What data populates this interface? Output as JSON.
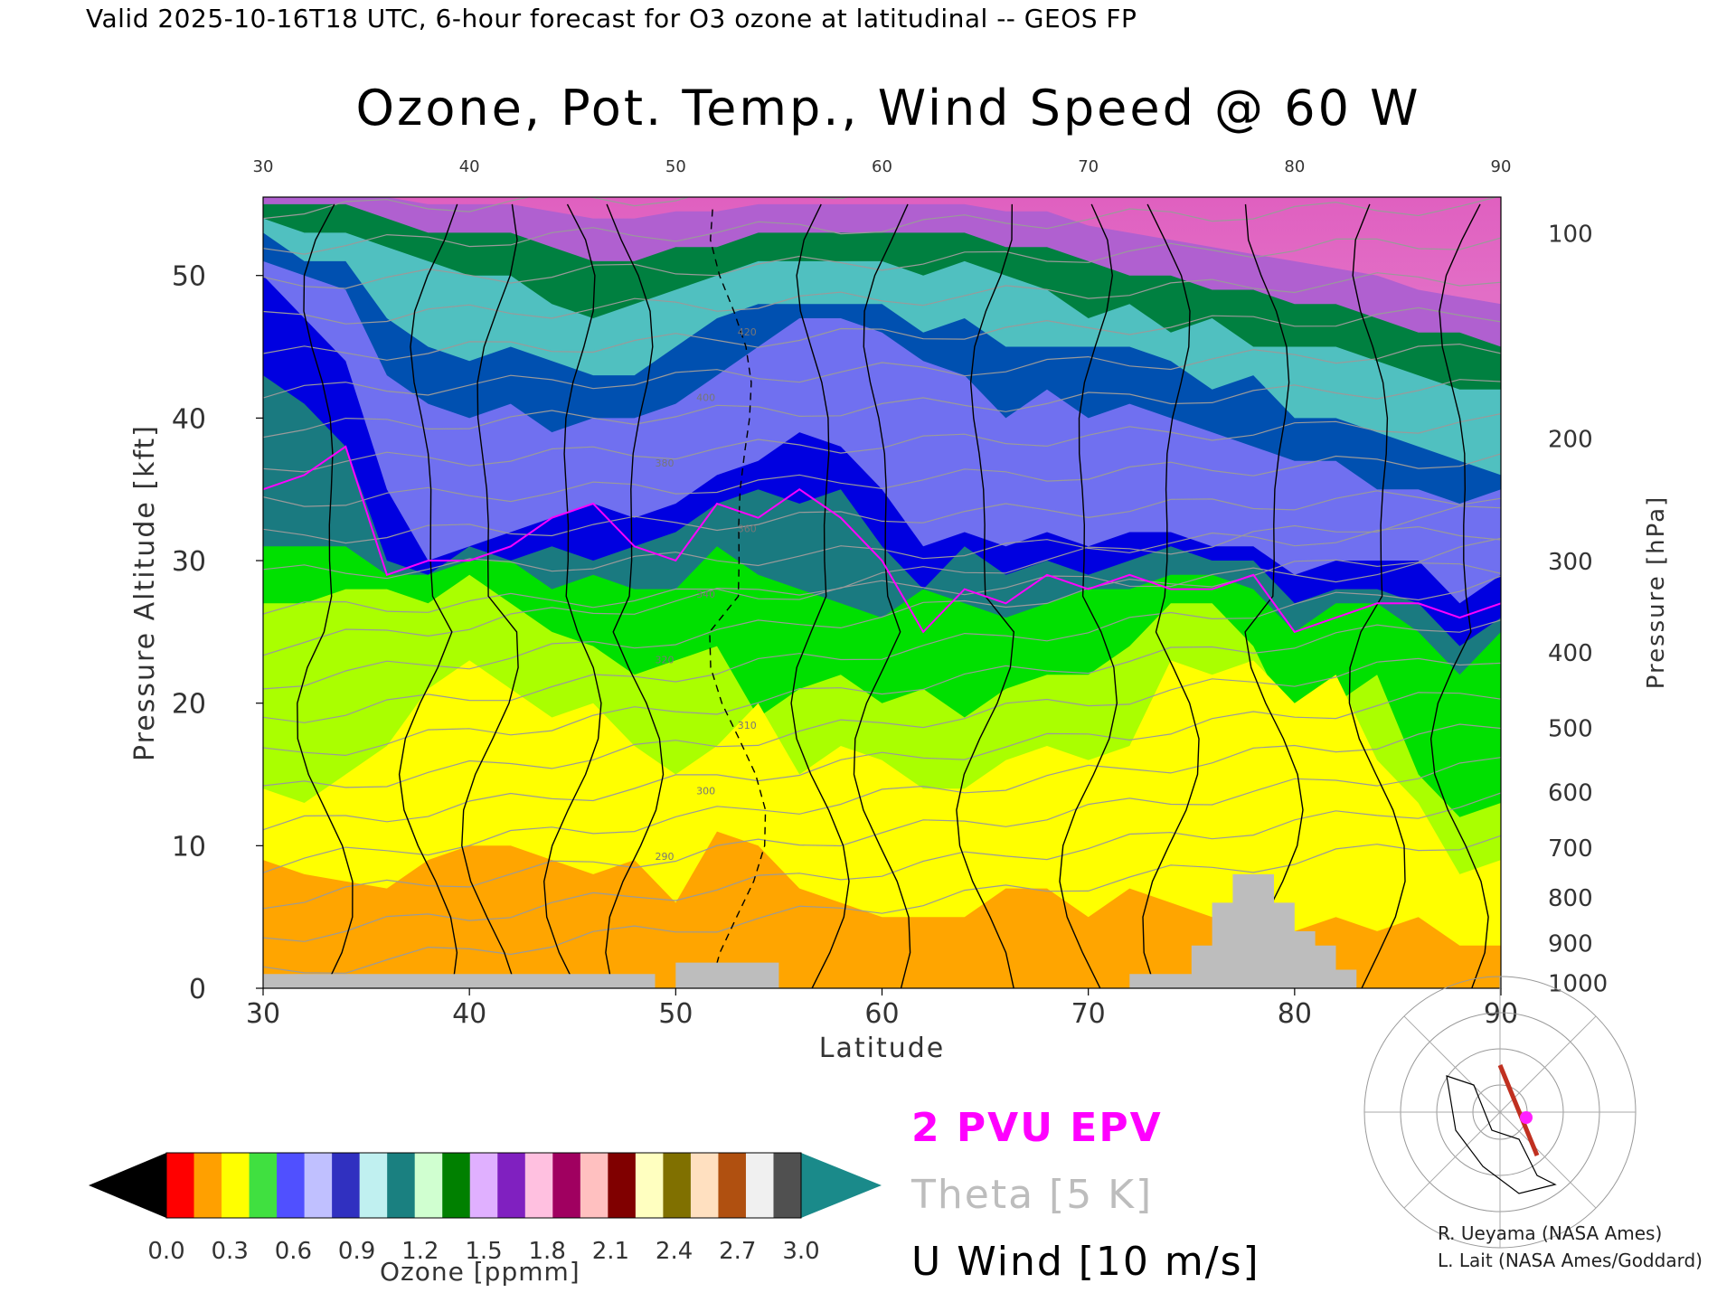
{
  "header": "Valid 2025-10-16T18 UTC, 6-hour forecast for O3 ozone at latitudinal -- GEOS FP",
  "chart_data": {
    "type": "heatmap",
    "title": "Ozone, Pot. Temp., Wind Speed @ 60 W",
    "xlabel": "Latitude",
    "ylabel": "Pressure Altitude [kft]",
    "y2label": "Pressure [hPa]",
    "xlim": [
      30,
      90
    ],
    "ylim": [
      0,
      55.5
    ],
    "x_ticks": [
      30,
      40,
      50,
      60,
      70,
      80,
      90
    ],
    "y_ticks": [
      0,
      10,
      20,
      30,
      40,
      50
    ],
    "pressure_ticks": [
      {
        "hpa": "100",
        "kft": 53.0
      },
      {
        "hpa": "200",
        "kft": 38.6
      },
      {
        "hpa": "300",
        "kft": 30.0
      },
      {
        "hpa": "400",
        "kft": 23.6
      },
      {
        "hpa": "500",
        "kft": 18.3
      },
      {
        "hpa": "600",
        "kft": 13.8
      },
      {
        "hpa": "700",
        "kft": 9.9
      },
      {
        "hpa": "800",
        "kft": 6.4
      },
      {
        "hpa": "900",
        "kft": 3.2
      },
      {
        "hpa": "1000",
        "kft": 0.4
      }
    ],
    "ozone_bands": [
      {
        "lat": [
          30,
          32,
          34,
          36,
          38,
          40,
          42,
          44,
          46,
          48,
          50,
          52,
          54,
          56,
          58,
          60,
          62,
          64,
          66,
          68,
          70,
          72,
          74,
          76,
          78,
          80,
          82,
          84,
          86,
          88,
          90
        ],
        "kft": [
          9,
          8,
          7.5,
          7,
          9,
          10,
          10,
          9,
          8,
          9,
          6,
          11,
          10,
          7,
          6,
          5,
          5,
          5,
          7,
          7,
          5,
          7,
          6,
          5,
          5,
          4,
          5,
          4,
          5,
          3,
          3
        ],
        "color": "#ffa500",
        "name": "2"
      },
      {
        "lat": [
          30,
          32,
          34,
          36,
          38,
          40,
          42,
          44,
          46,
          48,
          50,
          52,
          54,
          56,
          58,
          60,
          62,
          64,
          66,
          68,
          70,
          72,
          74,
          76,
          78,
          80,
          82,
          84,
          86,
          88,
          90
        ],
        "kft": [
          14,
          13,
          15,
          17,
          21,
          23,
          21,
          19,
          20,
          17,
          15,
          17,
          20,
          15,
          17,
          16,
          14,
          14,
          16,
          17,
          16,
          17,
          23,
          22,
          23,
          20,
          22,
          16,
          13,
          8,
          9
        ],
        "color": "#ffff00",
        "name": "3"
      },
      {
        "lat": [
          30,
          32,
          34,
          36,
          38,
          40,
          42,
          44,
          46,
          48,
          50,
          52,
          54,
          56,
          58,
          60,
          62,
          64,
          66,
          68,
          70,
          72,
          74,
          76,
          78,
          80,
          82,
          84,
          86,
          88,
          90
        ],
        "kft": [
          27,
          27,
          28,
          28,
          27,
          29,
          27,
          25,
          24,
          22,
          23,
          24,
          19,
          21,
          22,
          20,
          21,
          19,
          21,
          22,
          22,
          24,
          27,
          27,
          24,
          18,
          20,
          22,
          15,
          12,
          13
        ],
        "color": "#aaff00",
        "name": "4"
      },
      {
        "lat": [
          30,
          32,
          34,
          36,
          38,
          40,
          42,
          44,
          46,
          48,
          50,
          52,
          54,
          56,
          58,
          60,
          62,
          64,
          66,
          68,
          70,
          72,
          74,
          76,
          78,
          80,
          82,
          84,
          86,
          88,
          90
        ],
        "kft": [
          31,
          31,
          31,
          29,
          29,
          30,
          30,
          28,
          29,
          28,
          28,
          31,
          29,
          28,
          27,
          26,
          28,
          27,
          26,
          27,
          28,
          28,
          29,
          29,
          28,
          25,
          27,
          27,
          25,
          22,
          25
        ],
        "color": "#00e000",
        "name": "5"
      },
      {
        "lat": [
          30,
          32,
          34,
          36,
          38,
          40,
          42,
          44,
          46,
          48,
          50,
          52,
          54,
          56,
          58,
          60,
          62,
          64,
          66,
          68,
          70,
          72,
          74,
          76,
          78,
          80,
          82,
          84,
          86,
          88,
          90
        ],
        "kft": [
          43,
          41,
          38,
          30,
          29,
          31,
          30,
          31,
          30,
          31,
          32,
          34,
          35,
          34,
          35,
          31,
          28,
          31,
          29,
          30,
          29,
          30,
          31,
          30,
          30,
          27,
          28,
          28,
          27,
          24,
          26
        ],
        "color": "#1a7a80",
        "name": "6"
      },
      {
        "lat": [
          30,
          32,
          34,
          36,
          38,
          40,
          42,
          44,
          46,
          48,
          50,
          52,
          54,
          56,
          58,
          60,
          62,
          64,
          66,
          68,
          70,
          72,
          74,
          76,
          78,
          80,
          82,
          84,
          86,
          88,
          90
        ],
        "kft": [
          50,
          47,
          44,
          35,
          30,
          31,
          32,
          33,
          34,
          33,
          34,
          36,
          37,
          39,
          38,
          35,
          31,
          32,
          31,
          32,
          31,
          32,
          32,
          31,
          31,
          29,
          30,
          30,
          30,
          27,
          29
        ],
        "color": "#0000e0",
        "name": "7"
      },
      {
        "lat": [
          30,
          32,
          34,
          36,
          38,
          40,
          42,
          44,
          46,
          48,
          50,
          52,
          54,
          56,
          58,
          60,
          62,
          64,
          66,
          68,
          70,
          72,
          74,
          76,
          78,
          80,
          82,
          84,
          86,
          88,
          90
        ],
        "kft": [
          51,
          50,
          49,
          43,
          41,
          40,
          41,
          39,
          40,
          40,
          41,
          43,
          45,
          47,
          47,
          46,
          44,
          43,
          40,
          42,
          40,
          41,
          40,
          39,
          38,
          37,
          37,
          35,
          35,
          34,
          35
        ],
        "color": "#7070f0",
        "name": "8"
      },
      {
        "lat": [
          30,
          32,
          34,
          36,
          38,
          40,
          42,
          44,
          46,
          48,
          50,
          52,
          54,
          56,
          58,
          60,
          62,
          64,
          66,
          68,
          70,
          72,
          74,
          76,
          78,
          80,
          82,
          84,
          86,
          88,
          90
        ],
        "kft": [
          53,
          51,
          51,
          47,
          45,
          44,
          45,
          44,
          43,
          43,
          45,
          47,
          48,
          48,
          48,
          48,
          46,
          47,
          45,
          45,
          45,
          45,
          44,
          42,
          43,
          40,
          40,
          39,
          38,
          37,
          36
        ],
        "color": "#0050b0",
        "name": "9"
      },
      {
        "lat": [
          30,
          32,
          34,
          36,
          38,
          40,
          42,
          44,
          46,
          48,
          50,
          52,
          54,
          56,
          58,
          60,
          62,
          64,
          66,
          68,
          70,
          72,
          74,
          76,
          78,
          80,
          82,
          84,
          86,
          88,
          90
        ],
        "kft": [
          54,
          53,
          53,
          52,
          51,
          50,
          50,
          48,
          47,
          48,
          49,
          50,
          51,
          51,
          51,
          51,
          50,
          51,
          50,
          49,
          47,
          48,
          46,
          47,
          45,
          45,
          45,
          44,
          43,
          42,
          42
        ],
        "color": "#50c0c0",
        "name": "10"
      },
      {
        "lat": [
          30,
          32,
          34,
          36,
          38,
          40,
          42,
          44,
          46,
          48,
          50,
          52,
          54,
          56,
          58,
          60,
          62,
          64,
          66,
          68,
          70,
          72,
          74,
          76,
          78,
          80,
          82,
          84,
          86,
          88,
          90
        ],
        "kft": [
          55,
          55,
          55,
          54,
          53,
          53,
          53,
          52,
          51,
          51,
          52,
          52,
          53,
          53,
          53,
          53,
          53,
          53,
          52,
          52,
          51,
          50,
          50,
          49,
          49,
          48,
          48,
          47,
          46,
          46,
          45
        ],
        "color": "#008040",
        "name": "11"
      },
      {
        "lat": [
          30,
          32,
          34,
          36,
          38,
          40,
          42,
          44,
          46,
          48,
          50,
          52,
          54,
          56,
          58,
          60,
          62,
          64,
          66,
          68,
          70,
          72,
          74,
          76,
          78,
          80,
          82,
          84,
          86,
          88,
          90
        ],
        "kft": [
          55.5,
          55.5,
          55.5,
          55.5,
          55,
          55,
          55,
          54.5,
          54,
          54,
          54.5,
          54.5,
          55,
          55,
          55,
          55,
          55,
          55,
          54.5,
          54.5,
          53.5,
          53,
          52.5,
          52,
          51.5,
          51,
          50.5,
          50,
          49,
          48.5,
          48
        ],
        "color": "#b060d0",
        "name": "12"
      }
    ],
    "tropopause_2pvu": {
      "lat": [
        30,
        32,
        34,
        36,
        38,
        40,
        42,
        44,
        46,
        48,
        50,
        52,
        54,
        56,
        58,
        60,
        62,
        64,
        66,
        68,
        70,
        72,
        74,
        76,
        78,
        80,
        82,
        84,
        86,
        88,
        90
      ],
      "kft": [
        35,
        36,
        38,
        29,
        30,
        30,
        31,
        33,
        34,
        31,
        30,
        34,
        33,
        35,
        33,
        30,
        25,
        28,
        27,
        29,
        28,
        29,
        28,
        28,
        29,
        25,
        26,
        27,
        27,
        26,
        27
      ]
    },
    "theta_levels": [
      "290",
      "300",
      "310",
      "320",
      "340",
      "360",
      "380",
      "400",
      "420"
    ],
    "ozone_colorbar": {
      "ticks": [
        "0.0",
        "0.3",
        "0.6",
        "0.9",
        "1.2",
        "1.5",
        "1.8",
        "2.1",
        "2.4",
        "2.7",
        "3.0"
      ],
      "label": "Ozone [ppmm]",
      "segments": [
        "#ff0000",
        "#ffa000",
        "#ffff00",
        "#40e040",
        "#5050ff",
        "#c0c0ff",
        "#3030c0",
        "#c0f0f0",
        "#1a8080",
        "#d0ffd0",
        "#008000",
        "#e0b0ff",
        "#8020c0",
        "#ffc0e0",
        "#a00060",
        "#ffc0c0",
        "#800000",
        "#ffffc0",
        "#807000",
        "#ffe0c0",
        "#b05010",
        "#f0f0f0",
        "#505050"
      ]
    }
  },
  "legend": {
    "epv": "2 PVU EPV",
    "theta": "Theta [5 K]",
    "wind": "U Wind [10 m/s]"
  },
  "credits": {
    "line1": "R. Ueyama (NASA Ames)",
    "line2": "L. Lait (NASA Ames/Goddard)"
  }
}
